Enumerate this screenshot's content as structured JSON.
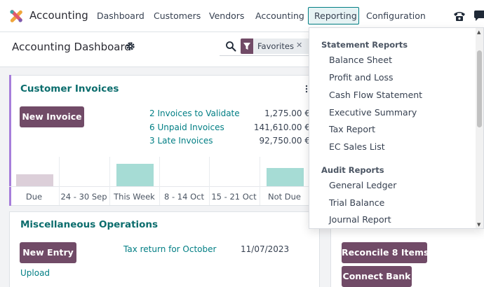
{
  "app": {
    "name": "Accounting",
    "logo_icon": "odoo-app-logo-icon"
  },
  "nav": {
    "items": [
      "Dashboard",
      "Customers",
      "Vendors",
      "Accounting",
      "Reporting",
      "Configuration"
    ],
    "active": "Reporting",
    "system_icons": [
      "phone-icon",
      "chat-icon"
    ]
  },
  "control_panel": {
    "title": "Accounting Dashboard",
    "search": {
      "facet_label": "Favorites",
      "facet_icon": "filter-icon"
    }
  },
  "customer_invoices": {
    "title": "Customer Invoices",
    "button": "New Invoice",
    "rows": [
      {
        "label": "2 Invoices to Validate",
        "amount": "1,275.00 €"
      },
      {
        "label": "6 Unpaid Invoices",
        "amount": "141,610.00 €"
      },
      {
        "label": "3 Late Invoices",
        "amount": "92,750.00 €"
      }
    ],
    "chart_data": {
      "type": "bar",
      "categories": [
        "Due",
        "24 - 30 Sep",
        "This Week",
        "8 - 14 Oct",
        "15 - 21 Oct",
        "Not Due"
      ],
      "values": [
        16,
        0,
        31,
        0,
        0,
        25
      ],
      "colors": [
        "#dccfd9",
        "#a6dcd5",
        "#a6dcd5",
        "#a6dcd5",
        "#a6dcd5",
        "#a6dcd5"
      ]
    }
  },
  "misc_operations": {
    "title": "Miscellaneous Operations",
    "button": "New Entry",
    "upload": "Upload",
    "task_label": "Tax return for October",
    "task_date": "11/07/2023"
  },
  "bank": {
    "reconcile_button": "Reconcile 8 Items",
    "connect_button": "Connect Bank"
  },
  "reporting_menu": {
    "sections": [
      {
        "header": "Statement Reports",
        "items": [
          "Balance Sheet",
          "Profit and Loss",
          "Cash Flow Statement",
          "Executive Summary",
          "Tax Report",
          "EC Sales List"
        ]
      },
      {
        "header": "Audit Reports",
        "items": [
          "General Ledger",
          "Trial Balance",
          "Journal Report"
        ]
      }
    ]
  },
  "colors": {
    "brand": "#714b67",
    "accent": "#017e84",
    "card_title": "#0b6d6d",
    "card_accent": "#a77edb"
  }
}
